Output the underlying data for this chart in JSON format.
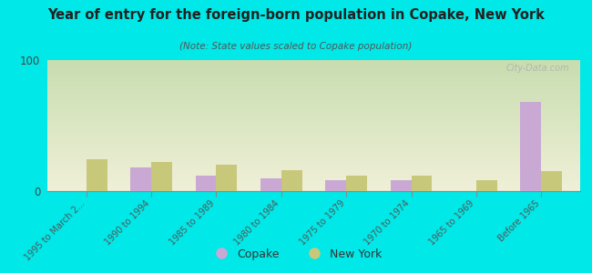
{
  "title": "Year of entry for the foreign-born population in Copake, New York",
  "subtitle": "(Note: State values scaled to Copake population)",
  "categories": [
    "1995 to March 2...",
    "1990 to 1994",
    "1985 to 1989",
    "1980 to 1984",
    "1975 to 1979",
    "1970 to 1974",
    "1965 to 1969",
    "Before 1965"
  ],
  "copake_values": [
    0,
    18,
    12,
    10,
    8,
    8,
    0,
    68
  ],
  "newyork_values": [
    24,
    22,
    20,
    16,
    12,
    12,
    8,
    15
  ],
  "copake_color": "#c9a8d4",
  "newyork_color": "#c8c87a",
  "ylim": [
    0,
    100
  ],
  "yticks": [
    0,
    100
  ],
  "background_top": "#c8ddb0",
  "background_bottom": "#f0f0d8",
  "outer_bg": "#00e8e8",
  "bar_width": 0.32,
  "watermark": "City-Data.com"
}
